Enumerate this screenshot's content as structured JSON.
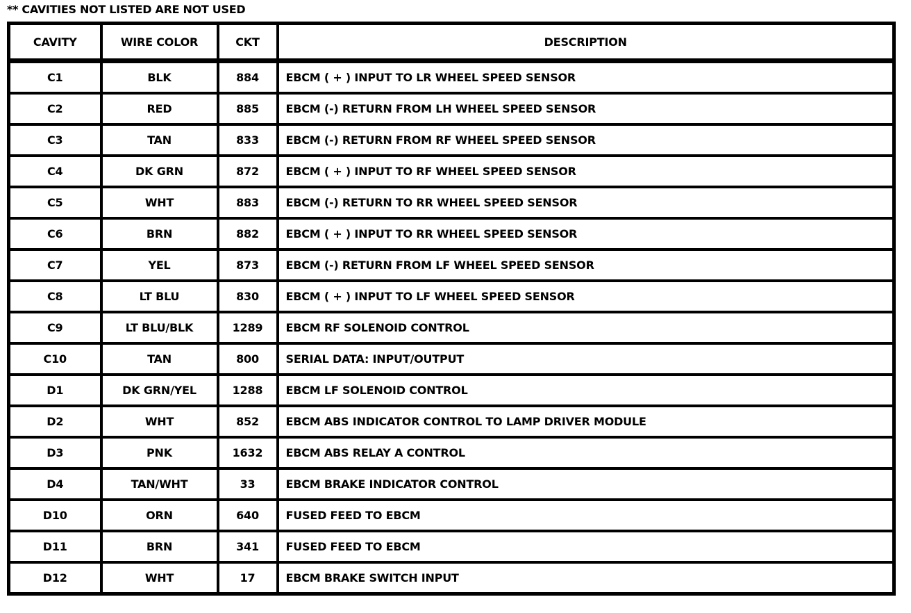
{
  "note": "** CAVITIES NOT LISTED ARE NOT USED",
  "headers": [
    "CAVITY",
    "WIRE COLOR",
    "CKT",
    "DESCRIPTION"
  ],
  "rows": [
    [
      "C1",
      "BLK",
      "884",
      "EBCM ( + ) INPUT TO LR WHEEL SPEED SENSOR"
    ],
    [
      "C2",
      "RED",
      "885",
      "EBCM (-) RETURN FROM LH WHEEL SPEED SENSOR"
    ],
    [
      "C3",
      "TAN",
      "833",
      "EBCM (-) RETURN FROM RF WHEEL SPEED SENSOR"
    ],
    [
      "C4",
      "DK GRN",
      "872",
      "EBCM ( + ) INPUT TO RF WHEEL SPEED SENSOR"
    ],
    [
      "C5",
      "WHT",
      "883",
      "EBCM (-) RETURN TO RR WHEEL SPEED SENSOR"
    ],
    [
      "C6",
      "BRN",
      "882",
      "EBCM ( + ) INPUT TO RR WHEEL SPEED SENSOR"
    ],
    [
      "C7",
      "YEL",
      "873",
      "EBCM (-) RETURN FROM LF WHEEL SPEED SENSOR"
    ],
    [
      "C8",
      "LT BLU",
      "830",
      "EBCM ( + ) INPUT TO LF WHEEL SPEED SENSOR"
    ],
    [
      "C9",
      "LT BLU/BLK",
      "1289",
      "EBCM RF SOLENOID CONTROL"
    ],
    [
      "C10",
      "TAN",
      "800",
      "SERIAL DATA:  INPUT/OUTPUT"
    ],
    [
      "D1",
      "DK GRN/YEL",
      "1288",
      "EBCM LF SOLENOID CONTROL"
    ],
    [
      "D2",
      "WHT",
      "852",
      "EBCM ABS INDICATOR CONTROL TO LAMP DRIVER MODULE"
    ],
    [
      "D3",
      "PNK",
      "1632",
      "EBCM ABS RELAY A CONTROL"
    ],
    [
      "D4",
      "TAN/WHT",
      "33",
      "EBCM BRAKE INDICATOR CONTROL"
    ],
    [
      "D10",
      "ORN",
      "640",
      "FUSED FEED TO EBCM"
    ],
    [
      "D11",
      "BRN",
      "341",
      "FUSED FEED TO EBCM"
    ],
    [
      "D12",
      "WHT",
      "17",
      "EBCM BRAKE SWITCH INPUT"
    ]
  ]
}
